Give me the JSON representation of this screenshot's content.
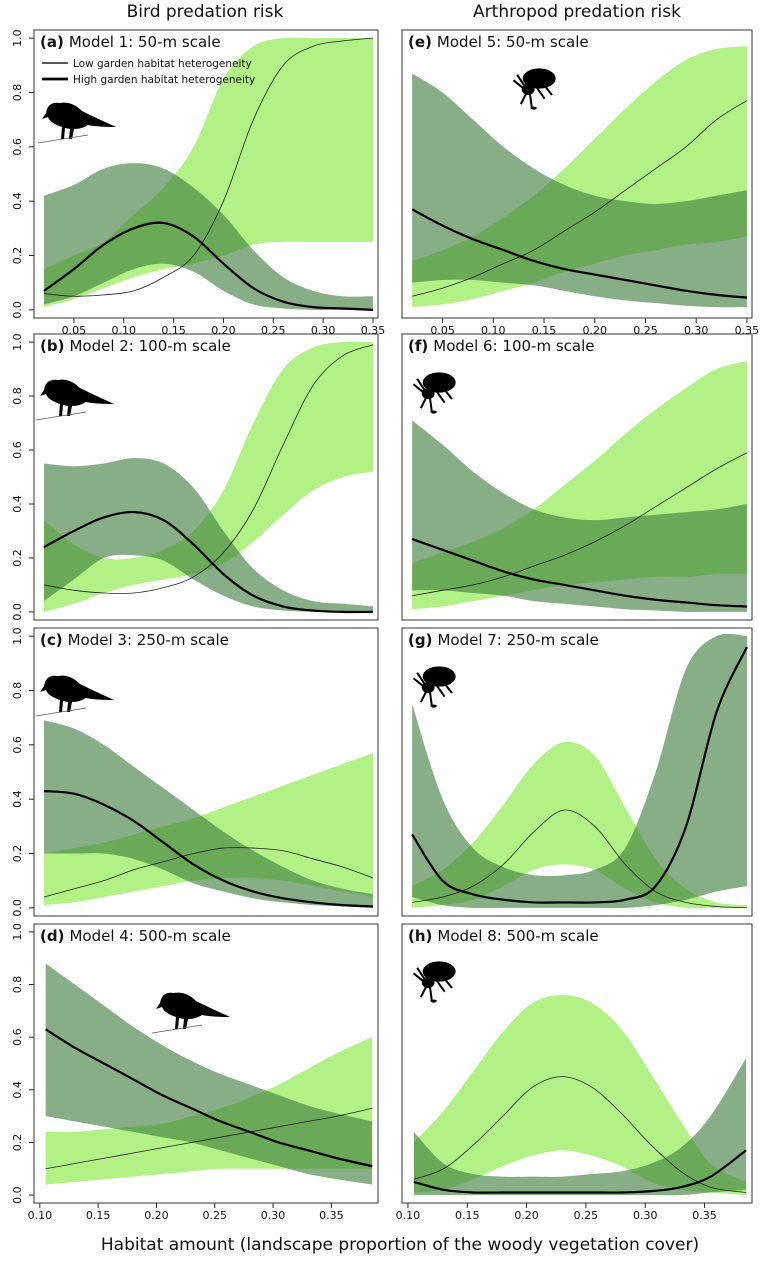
{
  "column_titles": [
    "Bird predation risk",
    "Arthropod predation risk"
  ],
  "x_label": "Habitat amount (landscape proportion of the woody vegetation cover)",
  "chart_data": [
    {
      "type": "line",
      "label": "(a)",
      "title": "Model 1: 50-m scale",
      "legend": "top-left",
      "x": [
        0.02,
        0.05,
        0.08,
        0.11,
        0.14,
        0.17,
        0.2,
        0.23,
        0.26,
        0.29,
        0.32,
        0.35
      ],
      "xlim": [
        0.01,
        0.355
      ],
      "xticks": [
        0.05,
        {
          "value": 0.1,
          "label": "0.10"
        },
        0.15,
        {
          "value": 0.2,
          "label": "0.20"
        },
        0.25,
        {
          "value": 0.3,
          "label": "0.30"
        },
        0.35
      ],
      "ylim": [
        -0.03,
        1.03
      ],
      "yticks": [
        {
          "value": 0,
          "label": "0.0"
        },
        0.2,
        0.4,
        0.6,
        0.8,
        {
          "value": 1,
          "label": "1.0"
        }
      ],
      "series": [
        {
          "name": "Low garden habitat heterogeneity",
          "color": "#222222",
          "band_color": "#a8ef78",
          "line_width": 0.8,
          "values": [
            0.06,
            0.05,
            0.055,
            0.07,
            0.12,
            0.2,
            0.4,
            0.7,
            0.9,
            0.97,
            0.99,
            1.0
          ],
          "lower": [
            0.01,
            0.04,
            0.08,
            0.12,
            0.15,
            0.17,
            0.2,
            0.24,
            0.25,
            0.25,
            0.25,
            0.25
          ],
          "upper": [
            0.15,
            0.2,
            0.25,
            0.35,
            0.45,
            0.6,
            0.85,
            0.97,
            1.0,
            1.0,
            1.0,
            1.0
          ]
        },
        {
          "name": "High garden habitat heterogeneity",
          "color": "#000000",
          "band_color": "#3d7d3d",
          "line_width": 2.2,
          "values": [
            0.07,
            0.15,
            0.24,
            0.3,
            0.32,
            0.27,
            0.17,
            0.08,
            0.03,
            0.01,
            0.005,
            0.0
          ],
          "lower": [
            0.02,
            0.05,
            0.1,
            0.15,
            0.17,
            0.14,
            0.07,
            0.02,
            0.005,
            0,
            0,
            0
          ],
          "upper": [
            0.42,
            0.46,
            0.52,
            0.54,
            0.52,
            0.45,
            0.35,
            0.22,
            0.12,
            0.07,
            0.05,
            0.05
          ]
        }
      ]
    },
    {
      "type": "line",
      "label": "(b)",
      "title": "Model 2: 100-m scale",
      "x": [
        0.02,
        0.05,
        0.08,
        0.11,
        0.14,
        0.17,
        0.2,
        0.23,
        0.26,
        0.29,
        0.32,
        0.35
      ],
      "xlim": [
        0.01,
        0.355
      ],
      "ylim": [
        -0.03,
        1.03
      ],
      "yticks": [
        {
          "value": 0,
          "label": "0.0"
        },
        0.2,
        0.4,
        0.6,
        0.8,
        {
          "value": 1,
          "label": "1.0"
        }
      ],
      "series": [
        {
          "color": "#222222",
          "band_color": "#a8ef78",
          "line_width": 0.8,
          "values": [
            0.1,
            0.08,
            0.07,
            0.07,
            0.09,
            0.13,
            0.22,
            0.38,
            0.62,
            0.84,
            0.95,
            0.99
          ],
          "lower": [
            0.0,
            0.03,
            0.07,
            0.1,
            0.12,
            0.14,
            0.18,
            0.26,
            0.36,
            0.45,
            0.5,
            0.52
          ],
          "upper": [
            0.34,
            0.25,
            0.2,
            0.2,
            0.23,
            0.3,
            0.45,
            0.7,
            0.9,
            0.98,
            1.0,
            1.0
          ]
        },
        {
          "color": "#000000",
          "band_color": "#3d7d3d",
          "line_width": 2.2,
          "values": [
            0.24,
            0.3,
            0.35,
            0.37,
            0.34,
            0.25,
            0.14,
            0.06,
            0.02,
            0.005,
            0,
            0
          ],
          "lower": [
            0.04,
            0.12,
            0.2,
            0.21,
            0.19,
            0.12,
            0.06,
            0.02,
            0.005,
            0,
            0,
            0
          ],
          "upper": [
            0.55,
            0.54,
            0.55,
            0.57,
            0.55,
            0.46,
            0.3,
            0.16,
            0.08,
            0.04,
            0.03,
            0.02
          ]
        }
      ]
    },
    {
      "type": "line",
      "label": "(c)",
      "title": "Model 3: 250-m scale",
      "x": [
        0.02,
        0.05,
        0.08,
        0.11,
        0.14,
        0.17,
        0.2,
        0.23,
        0.26,
        0.29,
        0.32,
        0.35
      ],
      "xlim": [
        0.01,
        0.355
      ],
      "ylim": [
        -0.03,
        1.03
      ],
      "yticks": [
        {
          "value": 0,
          "label": "0.0"
        },
        0.2,
        0.4,
        0.6,
        0.8,
        {
          "value": 1,
          "label": "1.0"
        }
      ],
      "series": [
        {
          "color": "#222222",
          "band_color": "#a8ef78",
          "line_width": 0.8,
          "values": [
            0.04,
            0.07,
            0.1,
            0.14,
            0.17,
            0.2,
            0.22,
            0.22,
            0.21,
            0.18,
            0.15,
            0.11
          ],
          "lower": [
            0.01,
            0.02,
            0.04,
            0.06,
            0.08,
            0.1,
            0.11,
            0.11,
            0.1,
            0.08,
            0.06,
            0.04
          ],
          "upper": [
            0.2,
            0.22,
            0.24,
            0.27,
            0.3,
            0.33,
            0.37,
            0.41,
            0.45,
            0.49,
            0.53,
            0.57
          ]
        },
        {
          "color": "#000000",
          "band_color": "#3d7d3d",
          "line_width": 2.2,
          "values": [
            0.43,
            0.42,
            0.38,
            0.32,
            0.24,
            0.16,
            0.1,
            0.06,
            0.035,
            0.02,
            0.01,
            0.005
          ],
          "lower": [
            0.2,
            0.2,
            0.2,
            0.18,
            0.14,
            0.09,
            0.06,
            0.035,
            0.02,
            0.01,
            0.005,
            0
          ],
          "upper": [
            0.69,
            0.66,
            0.6,
            0.52,
            0.44,
            0.36,
            0.28,
            0.21,
            0.15,
            0.1,
            0.07,
            0.05
          ]
        }
      ]
    },
    {
      "type": "line",
      "label": "(d)",
      "title": "Model 4: 500-m scale",
      "x": [
        0.105,
        0.13,
        0.155,
        0.18,
        0.205,
        0.23,
        0.255,
        0.28,
        0.305,
        0.33,
        0.355,
        0.385
      ],
      "xlim": [
        0.095,
        0.39
      ],
      "xticks": [
        {
          "value": 0.1,
          "label": "0.10"
        },
        0.15,
        {
          "value": 0.2,
          "label": "0.20"
        },
        0.25,
        {
          "value": 0.3,
          "label": "0.30"
        },
        0.35
      ],
      "ylim": [
        -0.03,
        1.03
      ],
      "yticks": [
        {
          "value": 0,
          "label": "0.0"
        },
        0.2,
        0.4,
        0.6,
        0.8,
        {
          "value": 1,
          "label": "1.0"
        }
      ],
      "series": [
        {
          "color": "#222222",
          "band_color": "#a8ef78",
          "line_width": 0.8,
          "values": [
            0.1,
            0.12,
            0.14,
            0.16,
            0.18,
            0.2,
            0.22,
            0.24,
            0.26,
            0.28,
            0.3,
            0.33
          ],
          "lower": [
            0.04,
            0.05,
            0.06,
            0.07,
            0.08,
            0.09,
            0.1,
            0.1,
            0.1,
            0.1,
            0.1,
            0.1
          ],
          "upper": [
            0.24,
            0.24,
            0.25,
            0.26,
            0.27,
            0.3,
            0.33,
            0.37,
            0.42,
            0.48,
            0.54,
            0.6
          ]
        },
        {
          "color": "#000000",
          "band_color": "#3d7d3d",
          "line_width": 2.2,
          "values": [
            0.63,
            0.56,
            0.5,
            0.44,
            0.38,
            0.33,
            0.28,
            0.24,
            0.2,
            0.17,
            0.14,
            0.11
          ],
          "lower": [
            0.3,
            0.28,
            0.26,
            0.24,
            0.22,
            0.2,
            0.17,
            0.14,
            0.11,
            0.08,
            0.06,
            0.04
          ],
          "upper": [
            0.88,
            0.8,
            0.72,
            0.64,
            0.57,
            0.51,
            0.46,
            0.42,
            0.38,
            0.34,
            0.31,
            0.28
          ]
        }
      ]
    },
    {
      "type": "line",
      "label": "(e)",
      "title": "Model 5: 50-m scale",
      "x": [
        0.02,
        0.05,
        0.08,
        0.11,
        0.14,
        0.17,
        0.2,
        0.23,
        0.26,
        0.29,
        0.32,
        0.35
      ],
      "xlim": [
        0.01,
        0.355
      ],
      "xticks": [
        0.05,
        {
          "value": 0.1,
          "label": "0.10"
        },
        0.15,
        {
          "value": 0.2,
          "label": "0.20"
        },
        0.25,
        {
          "value": 0.3,
          "label": "0.30"
        },
        0.35
      ],
      "ylim": [
        -0.03,
        1.03
      ],
      "series": [
        {
          "color": "#222222",
          "band_color": "#a8ef78",
          "line_width": 0.8,
          "values": [
            0.05,
            0.08,
            0.12,
            0.17,
            0.22,
            0.29,
            0.36,
            0.44,
            0.52,
            0.6,
            0.7,
            0.77
          ],
          "lower": [
            0.01,
            0.02,
            0.04,
            0.07,
            0.1,
            0.14,
            0.17,
            0.2,
            0.22,
            0.24,
            0.25,
            0.27
          ],
          "upper": [
            0.18,
            0.22,
            0.27,
            0.34,
            0.42,
            0.52,
            0.63,
            0.74,
            0.84,
            0.92,
            0.96,
            0.97
          ]
        },
        {
          "color": "#000000",
          "band_color": "#3d7d3d",
          "line_width": 2.2,
          "values": [
            0.37,
            0.31,
            0.26,
            0.22,
            0.18,
            0.15,
            0.13,
            0.11,
            0.09,
            0.07,
            0.055,
            0.045
          ],
          "lower": [
            0.1,
            0.11,
            0.11,
            0.1,
            0.09,
            0.07,
            0.05,
            0.035,
            0.025,
            0.015,
            0.01,
            0.01
          ],
          "upper": [
            0.87,
            0.8,
            0.7,
            0.6,
            0.52,
            0.46,
            0.42,
            0.4,
            0.39,
            0.4,
            0.42,
            0.44
          ]
        }
      ]
    },
    {
      "type": "line",
      "label": "(f)",
      "title": "Model 6: 100-m scale",
      "x": [
        0.02,
        0.05,
        0.08,
        0.11,
        0.14,
        0.17,
        0.2,
        0.23,
        0.26,
        0.29,
        0.32,
        0.35
      ],
      "xlim": [
        0.01,
        0.355
      ],
      "ylim": [
        -0.03,
        1.03
      ],
      "series": [
        {
          "color": "#222222",
          "band_color": "#a8ef78",
          "line_width": 0.8,
          "values": [
            0.06,
            0.08,
            0.1,
            0.13,
            0.17,
            0.21,
            0.26,
            0.32,
            0.39,
            0.46,
            0.53,
            0.59
          ],
          "lower": [
            0.01,
            0.02,
            0.04,
            0.06,
            0.08,
            0.1,
            0.11,
            0.12,
            0.13,
            0.13,
            0.14,
            0.14
          ],
          "upper": [
            0.18,
            0.22,
            0.26,
            0.31,
            0.38,
            0.47,
            0.56,
            0.66,
            0.75,
            0.83,
            0.9,
            0.93
          ]
        },
        {
          "color": "#000000",
          "band_color": "#3d7d3d",
          "line_width": 2.2,
          "values": [
            0.27,
            0.23,
            0.19,
            0.15,
            0.12,
            0.1,
            0.08,
            0.06,
            0.045,
            0.035,
            0.025,
            0.02
          ],
          "lower": [
            0.08,
            0.08,
            0.07,
            0.06,
            0.04,
            0.03,
            0.02,
            0.01,
            0.005,
            0,
            0,
            0
          ],
          "upper": [
            0.71,
            0.62,
            0.52,
            0.44,
            0.38,
            0.35,
            0.34,
            0.35,
            0.36,
            0.37,
            0.38,
            0.4
          ]
        }
      ]
    },
    {
      "type": "line",
      "label": "(g)",
      "title": "Model 7: 250-m scale",
      "x": [
        0.02,
        0.05,
        0.08,
        0.11,
        0.14,
        0.17,
        0.2,
        0.23,
        0.26,
        0.29,
        0.32,
        0.35
      ],
      "xlim": [
        0.01,
        0.355
      ],
      "ylim": [
        -0.03,
        1.03
      ],
      "series": [
        {
          "color": "#222222",
          "band_color": "#a8ef78",
          "line_width": 0.8,
          "values": [
            0.02,
            0.04,
            0.08,
            0.16,
            0.28,
            0.36,
            0.3,
            0.16,
            0.06,
            0.02,
            0.005,
            0
          ],
          "lower": [
            0,
            0.01,
            0.03,
            0.08,
            0.14,
            0.16,
            0.14,
            0.07,
            0.02,
            0,
            0,
            0
          ],
          "upper": [
            0.08,
            0.14,
            0.24,
            0.38,
            0.53,
            0.61,
            0.56,
            0.37,
            0.18,
            0.07,
            0.02,
            0.01
          ]
        },
        {
          "color": "#000000",
          "band_color": "#3d7d3d",
          "line_width": 2.2,
          "values": [
            0.27,
            0.1,
            0.05,
            0.03,
            0.02,
            0.02,
            0.02,
            0.03,
            0.08,
            0.3,
            0.72,
            0.96
          ],
          "lower": [
            0.04,
            0.01,
            0,
            0,
            0,
            0,
            0,
            0,
            0.01,
            0.03,
            0.06,
            0.08
          ],
          "upper": [
            0.75,
            0.4,
            0.22,
            0.15,
            0.12,
            0.12,
            0.14,
            0.22,
            0.5,
            0.88,
            1.0,
            1.0
          ]
        }
      ]
    },
    {
      "type": "line",
      "label": "(h)",
      "title": "Model 8: 500-m scale",
      "x": [
        0.105,
        0.13,
        0.155,
        0.18,
        0.205,
        0.23,
        0.255,
        0.28,
        0.305,
        0.33,
        0.355,
        0.385
      ],
      "xlim": [
        0.095,
        0.39
      ],
      "xticks": [
        {
          "value": 0.1,
          "label": "0.10"
        },
        0.15,
        {
          "value": 0.2,
          "label": "0.20"
        },
        0.25,
        {
          "value": 0.3,
          "label": "0.30"
        },
        0.35
      ],
      "ylim": [
        -0.03,
        1.03
      ],
      "series": [
        {
          "color": "#222222",
          "band_color": "#a8ef78",
          "line_width": 0.8,
          "values": [
            0.06,
            0.1,
            0.19,
            0.3,
            0.41,
            0.45,
            0.41,
            0.31,
            0.19,
            0.09,
            0.03,
            0.01
          ],
          "lower": [
            0.01,
            0.02,
            0.06,
            0.11,
            0.15,
            0.17,
            0.15,
            0.11,
            0.05,
            0.02,
            0.01,
            0
          ],
          "upper": [
            0.2,
            0.32,
            0.47,
            0.62,
            0.73,
            0.76,
            0.73,
            0.63,
            0.46,
            0.28,
            0.12,
            0.05
          ]
        },
        {
          "color": "#000000",
          "band_color": "#3d7d3d",
          "line_width": 2.2,
          "values": [
            0.05,
            0.02,
            0.01,
            0.01,
            0.01,
            0.01,
            0.01,
            0.01,
            0.015,
            0.03,
            0.07,
            0.17
          ],
          "lower": [
            0,
            0,
            0,
            0,
            0,
            0,
            0,
            0,
            0,
            0,
            0.01,
            0.02
          ],
          "upper": [
            0.24,
            0.12,
            0.08,
            0.07,
            0.07,
            0.07,
            0.08,
            0.09,
            0.12,
            0.18,
            0.3,
            0.52
          ]
        }
      ]
    }
  ]
}
